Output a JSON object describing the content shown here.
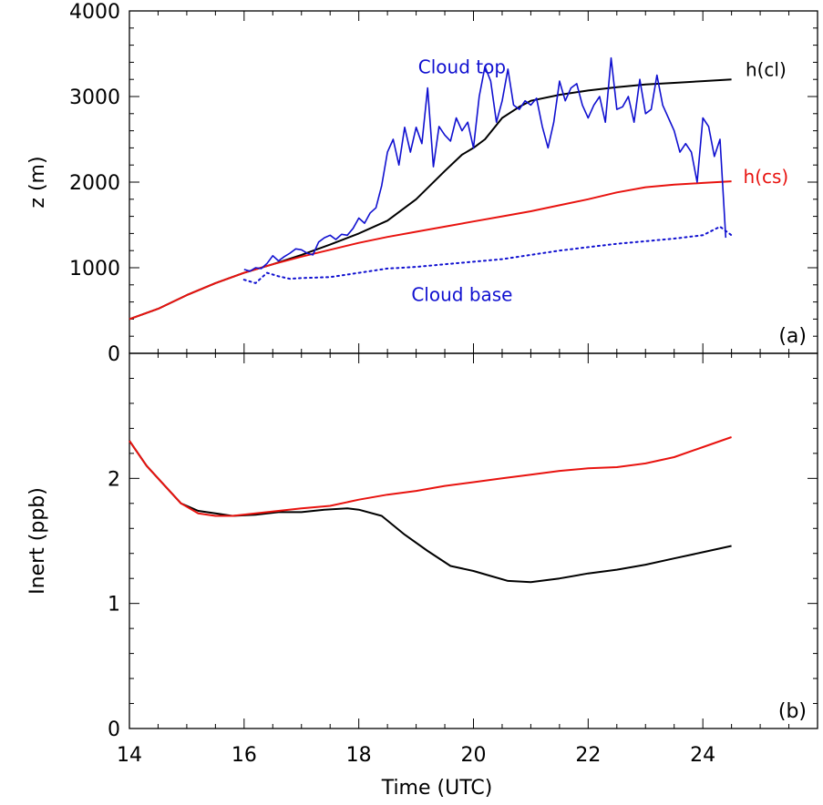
{
  "chart_data": [
    {
      "type": "line",
      "panel_label": "(a)",
      "xlabel": "",
      "ylabel": "z (m)",
      "xlim": [
        14,
        26
      ],
      "ylim": [
        0,
        4000
      ],
      "x_ticks": [
        14,
        16,
        18,
        20,
        22,
        24
      ],
      "y_ticks": [
        0,
        1000,
        2000,
        3000,
        4000
      ],
      "colors": {
        "black": "#000000",
        "red": "#e8130f",
        "blue": "#1010d0"
      },
      "annotations": [
        {
          "text": "Cloud top",
          "x": 19.8,
          "y": 3270,
          "color": "#1010d0"
        },
        {
          "text": "Cloud base",
          "x": 19.8,
          "y": 610,
          "color": "#1010d0"
        },
        {
          "text": "h(cl)",
          "x": 25.1,
          "y": 3240,
          "color": "#000000"
        },
        {
          "text": "h(cs)",
          "x": 25.1,
          "y": 1990,
          "color": "#e8130f"
        }
      ],
      "series": [
        {
          "name": "h(cl)",
          "color": "#000000",
          "style": "solid",
          "x": [
            14,
            14.5,
            15,
            15.5,
            16,
            16.5,
            17,
            17.5,
            18,
            18.5,
            19,
            19.5,
            19.8,
            20,
            20.2,
            20.5,
            20.8,
            21,
            21.5,
            22,
            22.5,
            23,
            23.5,
            24,
            24.5
          ],
          "y": [
            400,
            520,
            680,
            820,
            940,
            1040,
            1150,
            1270,
            1400,
            1550,
            1800,
            2130,
            2320,
            2400,
            2500,
            2750,
            2880,
            2950,
            3020,
            3070,
            3110,
            3140,
            3160,
            3180,
            3200
          ]
        },
        {
          "name": "h(cs)",
          "color": "#e8130f",
          "style": "solid",
          "x": [
            14,
            14.5,
            15,
            15.5,
            16,
            16.5,
            17,
            17.5,
            18,
            18.5,
            19,
            19.5,
            20,
            20.5,
            21,
            21.5,
            22,
            22.5,
            23,
            23.5,
            24,
            24.5
          ],
          "y": [
            400,
            520,
            680,
            820,
            940,
            1040,
            1130,
            1210,
            1290,
            1360,
            1420,
            1480,
            1540,
            1600,
            1660,
            1730,
            1800,
            1880,
            1940,
            1970,
            1990,
            2010
          ]
        },
        {
          "name": "Cloud top",
          "color": "#1010d0",
          "style": "solid",
          "x": [
            16,
            16.1,
            16.2,
            16.3,
            16.4,
            16.5,
            16.6,
            16.7,
            16.8,
            16.9,
            17,
            17.1,
            17.2,
            17.3,
            17.4,
            17.5,
            17.6,
            17.7,
            17.8,
            17.9,
            18,
            18.1,
            18.2,
            18.3,
            18.4,
            18.5,
            18.6,
            18.7,
            18.8,
            18.9,
            19,
            19.1,
            19.2,
            19.3,
            19.4,
            19.5,
            19.6,
            19.7,
            19.8,
            19.9,
            20,
            20.1,
            20.2,
            20.3,
            20.4,
            20.5,
            20.6,
            20.7,
            20.8,
            20.9,
            21,
            21.1,
            21.2,
            21.3,
            21.4,
            21.5,
            21.6,
            21.7,
            21.8,
            21.9,
            22,
            22.1,
            22.2,
            22.3,
            22.4,
            22.5,
            22.6,
            22.7,
            22.8,
            22.9,
            23,
            23.1,
            23.2,
            23.3,
            23.4,
            23.5,
            23.6,
            23.7,
            23.8,
            23.9,
            24,
            24.1,
            24.2,
            24.3,
            24.4
          ],
          "y": [
            980,
            960,
            1000,
            990,
            1050,
            1140,
            1080,
            1130,
            1170,
            1220,
            1210,
            1170,
            1150,
            1300,
            1350,
            1380,
            1330,
            1390,
            1380,
            1460,
            1580,
            1520,
            1640,
            1700,
            1960,
            2350,
            2500,
            2200,
            2640,
            2350,
            2640,
            2450,
            3100,
            2180,
            2650,
            2550,
            2480,
            2750,
            2600,
            2700,
            2400,
            3000,
            3350,
            3180,
            2700,
            2950,
            3320,
            2900,
            2850,
            2950,
            2900,
            2980,
            2650,
            2400,
            2700,
            3180,
            2950,
            3100,
            3150,
            2900,
            2750,
            2900,
            3000,
            2700,
            3450,
            2850,
            2880,
            3000,
            2700,
            3200,
            2800,
            2850,
            3250,
            2900,
            2750,
            2600,
            2350,
            2450,
            2350,
            2000,
            2750,
            2650,
            2300,
            2500,
            1350
          ]
        },
        {
          "name": "Cloud base",
          "color": "#1010d0",
          "style": "dotted",
          "x": [
            16,
            16.2,
            16.4,
            16.6,
            16.8,
            17,
            17.5,
            18,
            18.5,
            19,
            19.5,
            20,
            20.5,
            21,
            21.5,
            22,
            22.5,
            23,
            23.5,
            24,
            24.3,
            24.5
          ],
          "y": [
            860,
            820,
            940,
            900,
            870,
            880,
            890,
            940,
            990,
            1010,
            1040,
            1070,
            1100,
            1150,
            1200,
            1240,
            1280,
            1310,
            1340,
            1380,
            1480,
            1380
          ]
        }
      ]
    },
    {
      "type": "line",
      "panel_label": "(b)",
      "xlabel": "Time (UTC)",
      "ylabel": "Inert (ppb)",
      "xlim": [
        14,
        26
      ],
      "ylim": [
        0,
        3
      ],
      "x_ticks": [
        14,
        16,
        18,
        20,
        22,
        24
      ],
      "y_ticks": [
        0,
        1,
        2
      ],
      "series": [
        {
          "name": "h(cl)",
          "color": "#000000",
          "style": "solid",
          "x": [
            14,
            14.3,
            14.6,
            14.9,
            15.2,
            15.5,
            15.8,
            16.2,
            16.6,
            17,
            17.4,
            17.8,
            18.0,
            18.4,
            18.8,
            19.2,
            19.6,
            20.0,
            20.3,
            20.6,
            21.0,
            21.5,
            22.0,
            22.5,
            23.0,
            23.5,
            24.0,
            24.5
          ],
          "y": [
            2.3,
            2.1,
            1.95,
            1.8,
            1.74,
            1.72,
            1.7,
            1.71,
            1.73,
            1.73,
            1.75,
            1.76,
            1.75,
            1.7,
            1.55,
            1.42,
            1.3,
            1.26,
            1.22,
            1.18,
            1.17,
            1.2,
            1.24,
            1.27,
            1.31,
            1.36,
            1.41,
            1.46
          ]
        },
        {
          "name": "h(cs)",
          "color": "#e8130f",
          "style": "solid",
          "x": [
            14,
            14.3,
            14.6,
            14.9,
            15.2,
            15.5,
            15.8,
            16.2,
            16.6,
            17,
            17.5,
            18,
            18.5,
            19,
            19.5,
            20,
            20.5,
            21,
            21.5,
            22,
            22.5,
            23,
            23.5,
            24,
            24.5
          ],
          "y": [
            2.3,
            2.1,
            1.95,
            1.8,
            1.72,
            1.7,
            1.7,
            1.72,
            1.74,
            1.76,
            1.78,
            1.83,
            1.87,
            1.9,
            1.94,
            1.97,
            2.0,
            2.03,
            2.06,
            2.08,
            2.09,
            2.12,
            2.17,
            2.25,
            2.33
          ]
        }
      ]
    }
  ]
}
